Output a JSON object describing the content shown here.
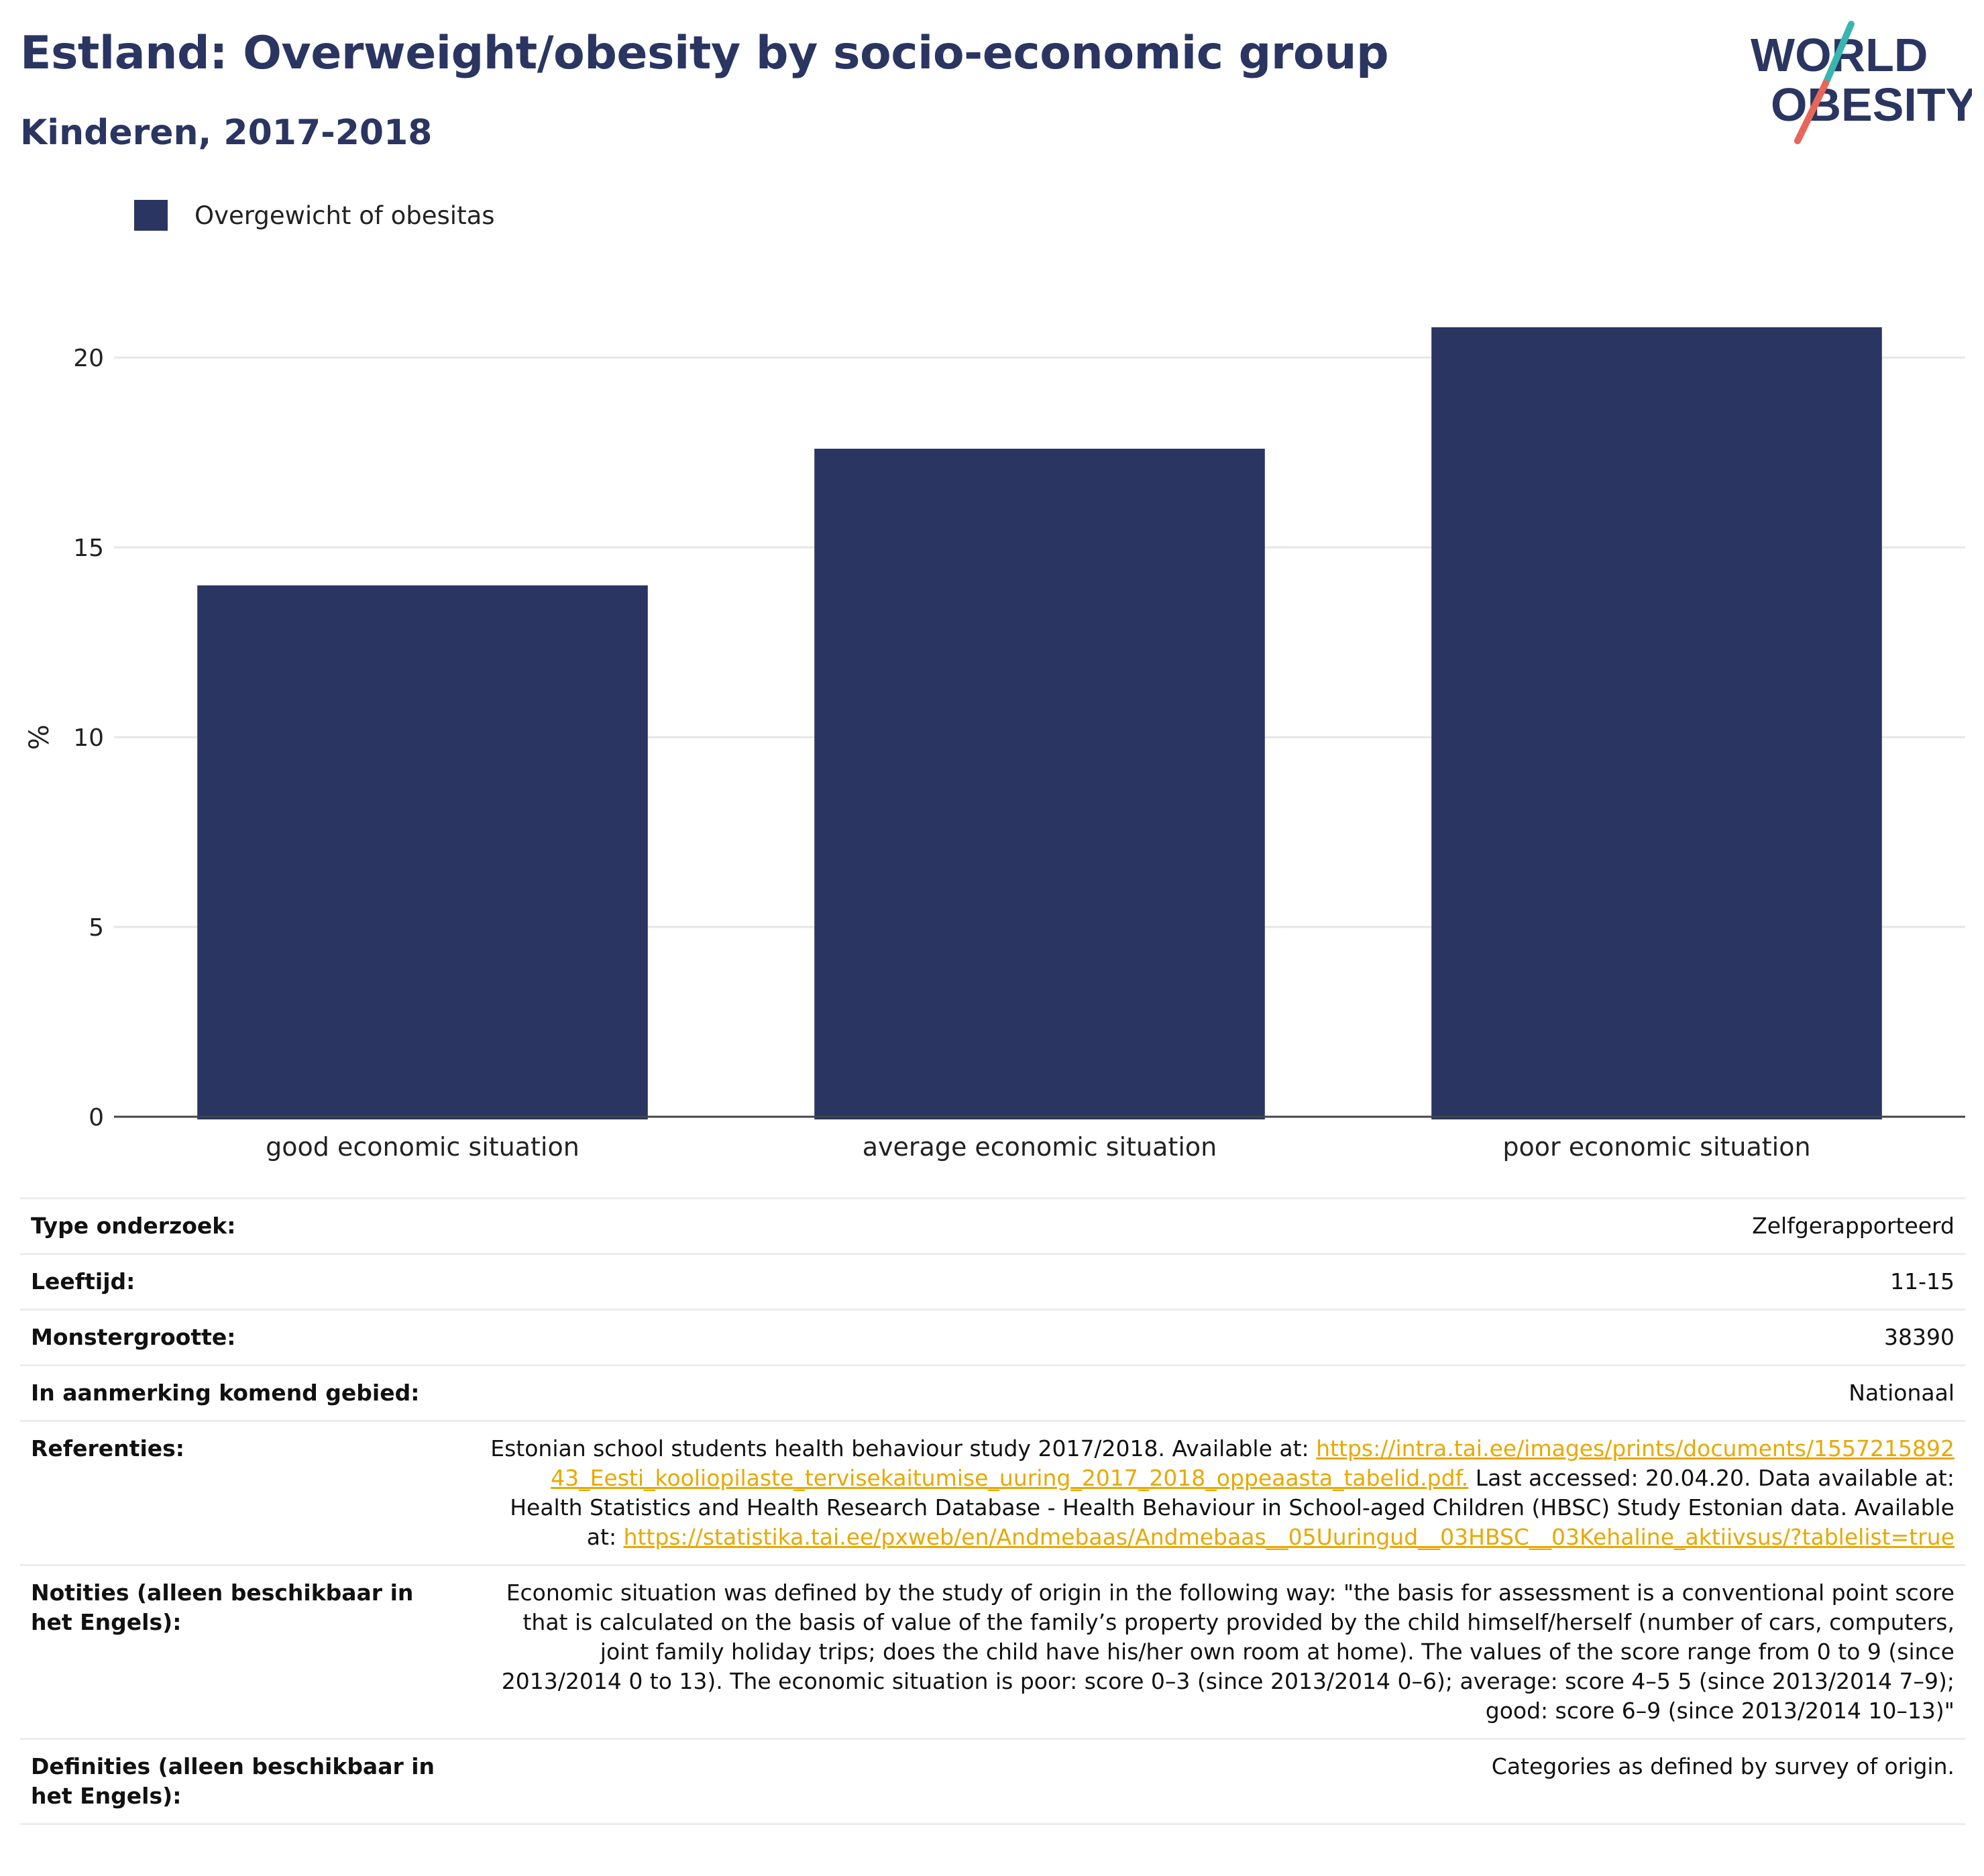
{
  "title": "Estland: Overweight/obesity by socio-economic group",
  "subtitle": "Kinderen, 2017-2018",
  "logo": {
    "line1": "WORLD",
    "line2": "OBESITY",
    "slash_colors": [
      "#3ab5b0",
      "#e8655a"
    ]
  },
  "colors": {
    "bar": "#2a3561",
    "title": "#2a3561",
    "link": "#e8a800",
    "grid": "#e6e6e6"
  },
  "chart_data": {
    "type": "bar",
    "categories": [
      "good economic situation",
      "average economic situation",
      "poor economic situation"
    ],
    "series": [
      {
        "name": "Overgewicht of obesitas",
        "values": [
          14.0,
          17.6,
          20.8
        ]
      }
    ],
    "ylabel": "%",
    "xlabel": "",
    "ylim": [
      0,
      22
    ],
    "yticks": [
      0,
      5,
      10,
      15,
      20
    ],
    "grid": true,
    "legend_position": "top-left"
  },
  "meta": {
    "survey_type_label": "Type onderzoek:",
    "survey_type_value": "Zelfgerapporteerd",
    "age_label": "Leeftijd:",
    "age_value": "11-15",
    "sample_label": "Monstergrootte:",
    "sample_value": "38390",
    "area_label": "In aanmerking komend gebied:",
    "area_value": "Nationaal",
    "references_label": "Referenties:",
    "ref_text1": "Estonian school students health behaviour study 2017/2018. Available at: ",
    "ref_link1": "https://intra.tai.ee/images/prints/documents/155721589243_Eesti_kooliopilaste_tervisekaitumise_uuring_2017_2018_oppeaasta_tabelid.pdf.",
    "ref_text2": " Last accessed: 20.04.20. Data available at: Health Statistics and Health Research Database - Health Behaviour in School-aged Children (HBSC) Study Estonian data. Available at: ",
    "ref_link2": "https://statistika.tai.ee/pxweb/en/Andmebaas/Andmebaas__05Uuringud__03HBSC__03Kehaline_aktiivsus/?tablelist=true",
    "notes_label": "Notities (alleen beschikbaar in het Engels):",
    "notes_value": "Economic situation was defined by the study of origin in the following way: \"the basis for assessment is a conventional point score that is calculated on the basis of value of the family’s property provided by the child himself/herself (number of cars, computers, joint family holiday trips; does the child have his/her own room at home). The values of the score range from 0 to 9 (since 2013/2014 0 to 13). The economic situation is poor: score 0–3 (since 2013/2014 0–6); average: score 4–5 5 (since 2013/2014 7–9); good: score 6–9 (since 2013/2014 10–13)\"",
    "definitions_label": "Definities (alleen beschikbaar in het Engels):",
    "definitions_value": "Categories as defined by survey of origin."
  }
}
